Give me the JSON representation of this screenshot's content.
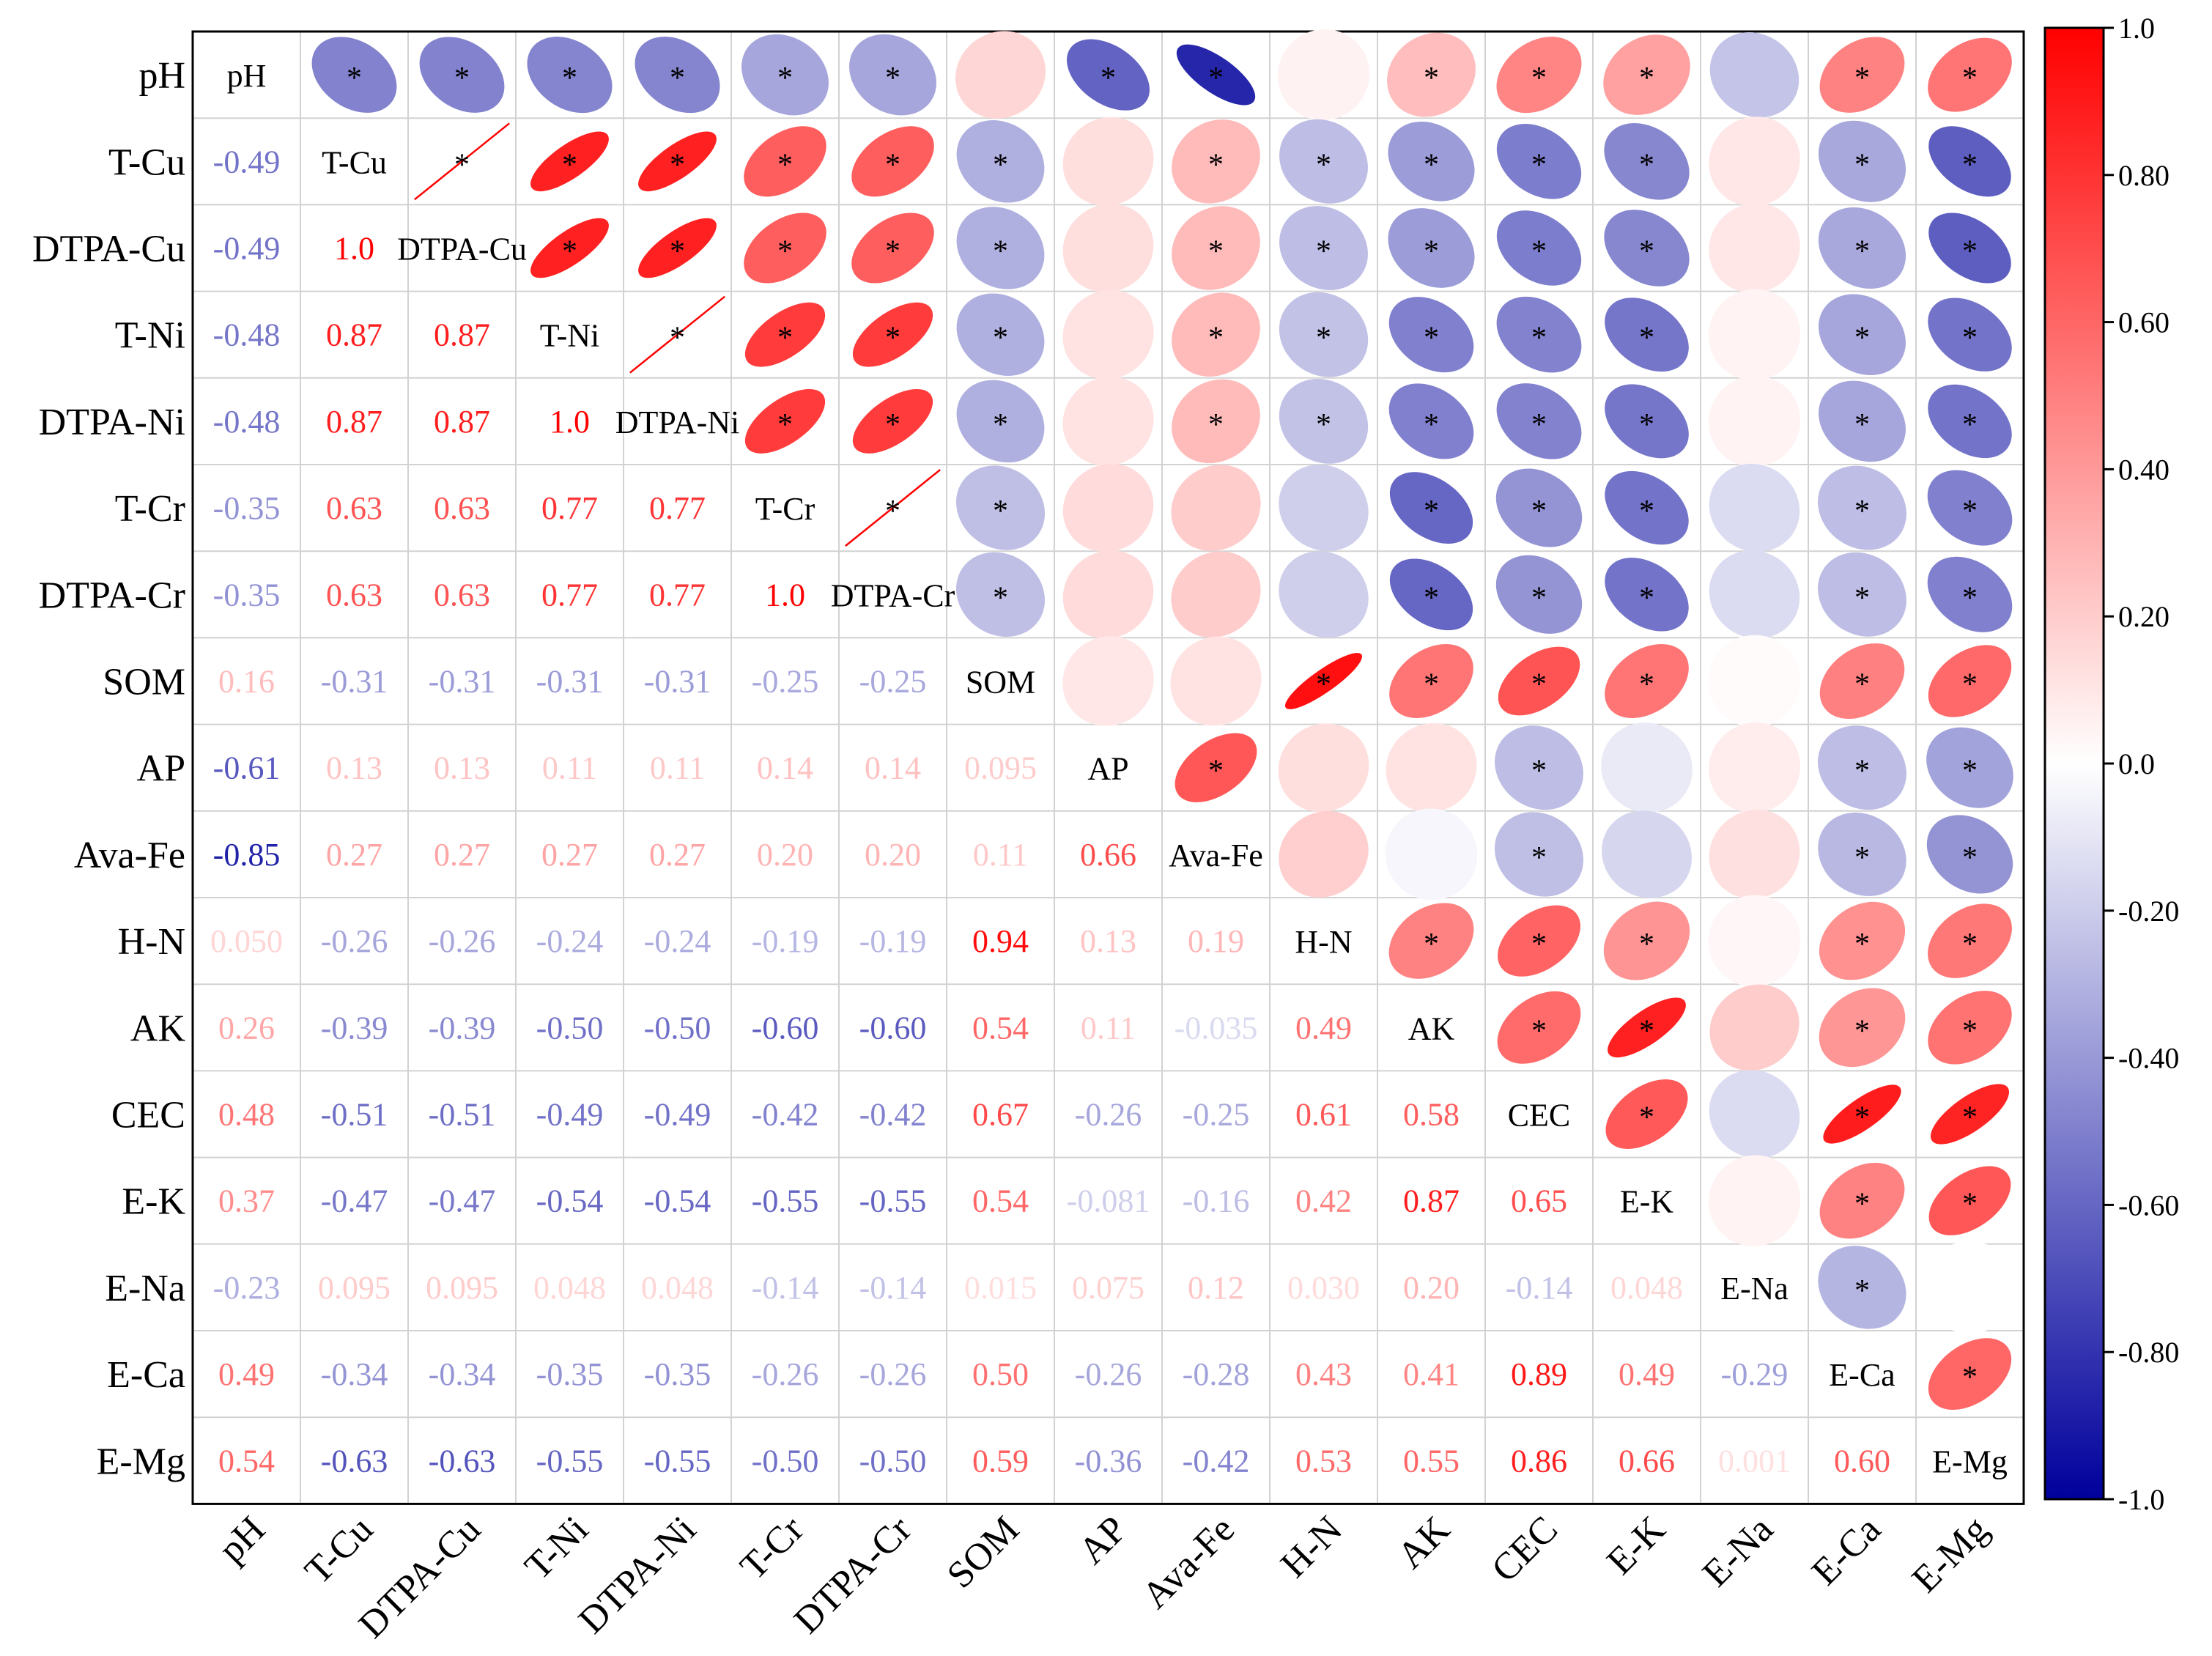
{
  "chart_data": {
    "type": "heatmap",
    "title": "",
    "variables": [
      "pH",
      "T-Cu",
      "DTPA-Cu",
      "T-Ni",
      "DTPA-Ni",
      "T-Cr",
      "DTPA-Cr",
      "SOM",
      "AP",
      "Ava-Fe",
      "H-N",
      "AK",
      "CEC",
      "E-K",
      "E-Na",
      "E-Ca",
      "E-Mg"
    ],
    "lower_labels": [
      [],
      [
        "-0.49"
      ],
      [
        "-0.49",
        "1.0"
      ],
      [
        "-0.48",
        "0.87",
        "0.87"
      ],
      [
        "-0.48",
        "0.87",
        "0.87",
        "1.0"
      ],
      [
        "-0.35",
        "0.63",
        "0.63",
        "0.77",
        "0.77"
      ],
      [
        "-0.35",
        "0.63",
        "0.63",
        "0.77",
        "0.77",
        "1.0"
      ],
      [
        "0.16",
        "-0.31",
        "-0.31",
        "-0.31",
        "-0.31",
        "-0.25",
        "-0.25"
      ],
      [
        "-0.61",
        "0.13",
        "0.13",
        "0.11",
        "0.11",
        "0.14",
        "0.14",
        "0.095"
      ],
      [
        "-0.85",
        "0.27",
        "0.27",
        "0.27",
        "0.27",
        "0.20",
        "0.20",
        "0.11",
        "0.66"
      ],
      [
        "0.050",
        "-0.26",
        "-0.26",
        "-0.24",
        "-0.24",
        "-0.19",
        "-0.19",
        "0.94",
        "0.13",
        "0.19"
      ],
      [
        "0.26",
        "-0.39",
        "-0.39",
        "-0.50",
        "-0.50",
        "-0.60",
        "-0.60",
        "0.54",
        "0.11",
        "-0.035",
        "0.49"
      ],
      [
        "0.48",
        "-0.51",
        "-0.51",
        "-0.49",
        "-0.49",
        "-0.42",
        "-0.42",
        "0.67",
        "-0.26",
        "-0.25",
        "0.61",
        "0.58"
      ],
      [
        "0.37",
        "-0.47",
        "-0.47",
        "-0.54",
        "-0.54",
        "-0.55",
        "-0.55",
        "0.54",
        "-0.081",
        "-0.16",
        "0.42",
        "0.87",
        "0.65"
      ],
      [
        "-0.23",
        "0.095",
        "0.095",
        "0.048",
        "0.048",
        "-0.14",
        "-0.14",
        "0.015",
        "0.075",
        "0.12",
        "0.030",
        "0.20",
        "-0.14",
        "0.048"
      ],
      [
        "0.49",
        "-0.34",
        "-0.34",
        "-0.35",
        "-0.35",
        "-0.26",
        "-0.26",
        "0.50",
        "-0.26",
        "-0.28",
        "0.43",
        "0.41",
        "0.89",
        "0.49",
        "-0.29"
      ],
      [
        "0.54",
        "-0.63",
        "-0.63",
        "-0.55",
        "-0.55",
        "-0.50",
        "-0.50",
        "0.59",
        "-0.36",
        "-0.42",
        "0.53",
        "0.55",
        "0.86",
        "0.66",
        "0.001",
        "0.60"
      ]
    ],
    "significant_pairs": [
      [
        "pH",
        "T-Cu"
      ],
      [
        "pH",
        "DTPA-Cu"
      ],
      [
        "pH",
        "T-Ni"
      ],
      [
        "pH",
        "DTPA-Ni"
      ],
      [
        "pH",
        "T-Cr"
      ],
      [
        "pH",
        "DTPA-Cr"
      ],
      [
        "pH",
        "AP"
      ],
      [
        "pH",
        "Ava-Fe"
      ],
      [
        "pH",
        "AK"
      ],
      [
        "pH",
        "CEC"
      ],
      [
        "pH",
        "E-K"
      ],
      [
        "pH",
        "E-Ca"
      ],
      [
        "pH",
        "E-Mg"
      ],
      [
        "T-Cu",
        "DTPA-Cu"
      ],
      [
        "T-Cu",
        "T-Ni"
      ],
      [
        "T-Cu",
        "DTPA-Ni"
      ],
      [
        "T-Cu",
        "T-Cr"
      ],
      [
        "T-Cu",
        "DTPA-Cr"
      ],
      [
        "T-Cu",
        "SOM"
      ],
      [
        "T-Cu",
        "Ava-Fe"
      ],
      [
        "T-Cu",
        "H-N"
      ],
      [
        "T-Cu",
        "AK"
      ],
      [
        "T-Cu",
        "CEC"
      ],
      [
        "T-Cu",
        "E-K"
      ],
      [
        "T-Cu",
        "E-Ca"
      ],
      [
        "T-Cu",
        "E-Mg"
      ],
      [
        "DTPA-Cu",
        "T-Ni"
      ],
      [
        "DTPA-Cu",
        "DTPA-Ni"
      ],
      [
        "DTPA-Cu",
        "T-Cr"
      ],
      [
        "DTPA-Cu",
        "DTPA-Cr"
      ],
      [
        "DTPA-Cu",
        "SOM"
      ],
      [
        "DTPA-Cu",
        "Ava-Fe"
      ],
      [
        "DTPA-Cu",
        "H-N"
      ],
      [
        "DTPA-Cu",
        "AK"
      ],
      [
        "DTPA-Cu",
        "CEC"
      ],
      [
        "DTPA-Cu",
        "E-K"
      ],
      [
        "DTPA-Cu",
        "E-Ca"
      ],
      [
        "DTPA-Cu",
        "E-Mg"
      ],
      [
        "T-Ni",
        "DTPA-Ni"
      ],
      [
        "T-Ni",
        "T-Cr"
      ],
      [
        "T-Ni",
        "DTPA-Cr"
      ],
      [
        "T-Ni",
        "SOM"
      ],
      [
        "T-Ni",
        "Ava-Fe"
      ],
      [
        "T-Ni",
        "H-N"
      ],
      [
        "T-Ni",
        "AK"
      ],
      [
        "T-Ni",
        "CEC"
      ],
      [
        "T-Ni",
        "E-K"
      ],
      [
        "T-Ni",
        "E-Ca"
      ],
      [
        "T-Ni",
        "E-Mg"
      ],
      [
        "DTPA-Ni",
        "T-Cr"
      ],
      [
        "DTPA-Ni",
        "DTPA-Cr"
      ],
      [
        "DTPA-Ni",
        "SOM"
      ],
      [
        "DTPA-Ni",
        "Ava-Fe"
      ],
      [
        "DTPA-Ni",
        "H-N"
      ],
      [
        "DTPA-Ni",
        "AK"
      ],
      [
        "DTPA-Ni",
        "CEC"
      ],
      [
        "DTPA-Ni",
        "E-K"
      ],
      [
        "DTPA-Ni",
        "E-Ca"
      ],
      [
        "DTPA-Ni",
        "E-Mg"
      ],
      [
        "T-Cr",
        "DTPA-Cr"
      ],
      [
        "T-Cr",
        "SOM"
      ],
      [
        "T-Cr",
        "AK"
      ],
      [
        "T-Cr",
        "CEC"
      ],
      [
        "T-Cr",
        "E-K"
      ],
      [
        "T-Cr",
        "E-Ca"
      ],
      [
        "T-Cr",
        "E-Mg"
      ],
      [
        "DTPA-Cr",
        "SOM"
      ],
      [
        "DTPA-Cr",
        "AK"
      ],
      [
        "DTPA-Cr",
        "CEC"
      ],
      [
        "DTPA-Cr",
        "E-K"
      ],
      [
        "DTPA-Cr",
        "E-Ca"
      ],
      [
        "DTPA-Cr",
        "E-Mg"
      ],
      [
        "SOM",
        "H-N"
      ],
      [
        "SOM",
        "AK"
      ],
      [
        "SOM",
        "CEC"
      ],
      [
        "SOM",
        "E-K"
      ],
      [
        "SOM",
        "E-Ca"
      ],
      [
        "SOM",
        "E-Mg"
      ],
      [
        "AP",
        "Ava-Fe"
      ],
      [
        "AP",
        "CEC"
      ],
      [
        "AP",
        "E-Ca"
      ],
      [
        "AP",
        "E-Mg"
      ],
      [
        "Ava-Fe",
        "CEC"
      ],
      [
        "Ava-Fe",
        "E-Ca"
      ],
      [
        "Ava-Fe",
        "E-Mg"
      ],
      [
        "H-N",
        "AK"
      ],
      [
        "H-N",
        "CEC"
      ],
      [
        "H-N",
        "E-K"
      ],
      [
        "H-N",
        "E-Ca"
      ],
      [
        "H-N",
        "E-Mg"
      ],
      [
        "AK",
        "CEC"
      ],
      [
        "AK",
        "E-K"
      ],
      [
        "AK",
        "E-Ca"
      ],
      [
        "AK",
        "E-Mg"
      ],
      [
        "CEC",
        "E-K"
      ],
      [
        "CEC",
        "E-Ca"
      ],
      [
        "CEC",
        "E-Mg"
      ],
      [
        "E-K",
        "E-Ca"
      ],
      [
        "E-K",
        "E-Mg"
      ],
      [
        "E-Na",
        "E-Ca"
      ],
      [
        "E-Ca",
        "E-Mg"
      ]
    ],
    "significance_mark": "*",
    "colorbar": {
      "range": [
        -1.0,
        1.0
      ],
      "ticks": [
        "1.0",
        "0.80",
        "0.60",
        "0.40",
        "0.20",
        "0.0",
        "-0.20",
        "-0.40",
        "-0.60",
        "-0.80",
        "-1.0"
      ],
      "colors": {
        "negative": "#00009c",
        "zero": "#ffffff",
        "positive": "#ff0000"
      }
    }
  }
}
